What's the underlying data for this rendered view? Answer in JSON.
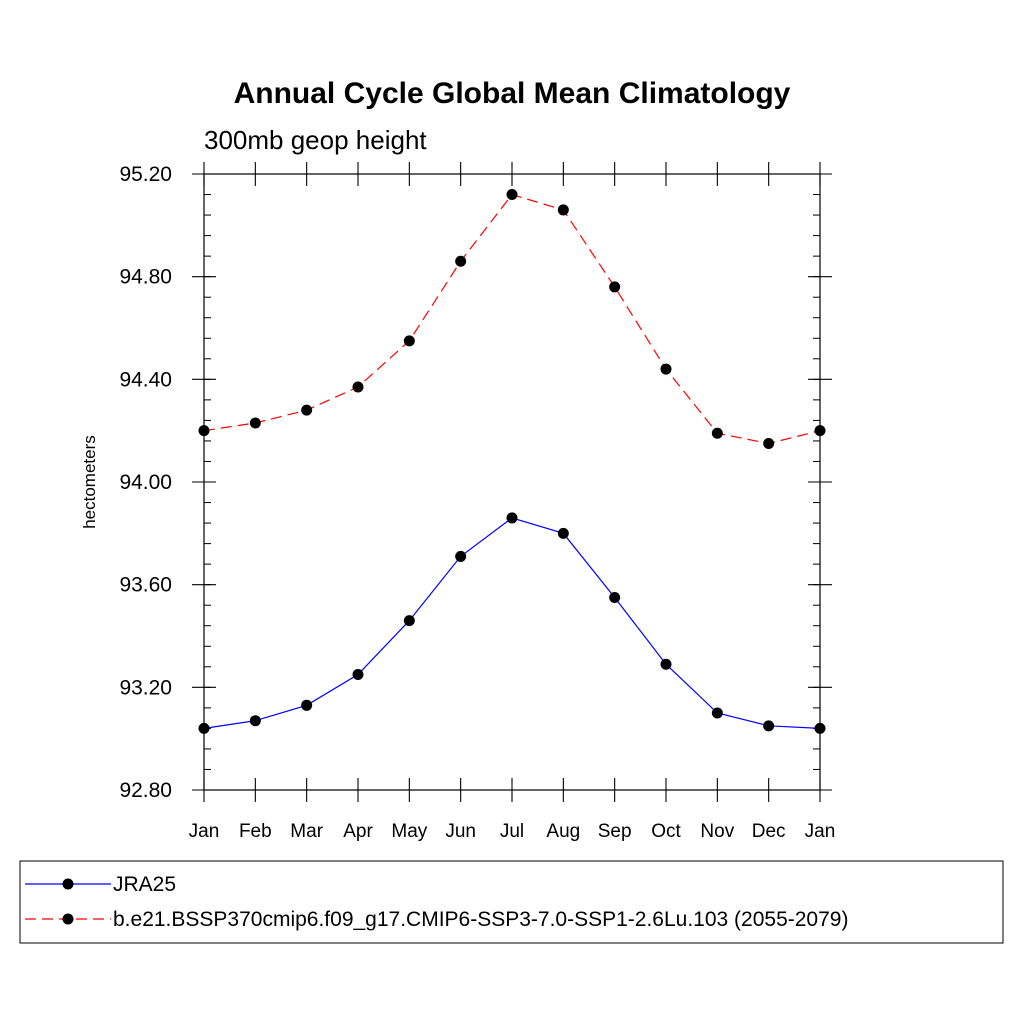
{
  "chart_data": {
    "type": "line",
    "title": "Annual Cycle Global Mean Climatology",
    "subtitle": "300mb geop height",
    "ylabel": "hectometers",
    "xlabel": "",
    "categories": [
      "Jan",
      "Feb",
      "Mar",
      "Apr",
      "May",
      "Jun",
      "Jul",
      "Aug",
      "Sep",
      "Oct",
      "Nov",
      "Dec",
      "Jan"
    ],
    "ylim": [
      92.8,
      95.2
    ],
    "yticks": [
      "92.80",
      "93.20",
      "93.60",
      "94.00",
      "94.40",
      "94.80",
      "95.20"
    ],
    "grid": false,
    "legend_position": "bottom",
    "series": [
      {
        "name": "JRA25",
        "color": "#0000ff",
        "dash": "solid",
        "marker": "filled-circle",
        "values": [
          93.04,
          93.07,
          93.13,
          93.25,
          93.46,
          93.71,
          93.86,
          93.8,
          93.55,
          93.29,
          93.1,
          93.05,
          93.04
        ]
      },
      {
        "name": "b.e21.BSSP370cmip6.f09_g17.CMIP6-SSP3-7.0-SSP1-2.6Lu.103 (2055-2079)",
        "color": "#ff0000",
        "dash": "dashed",
        "marker": "filled-circle",
        "values": [
          94.2,
          94.23,
          94.28,
          94.37,
          94.55,
          94.86,
          95.12,
          95.06,
          94.76,
          94.44,
          94.19,
          94.15,
          94.2
        ]
      }
    ]
  }
}
